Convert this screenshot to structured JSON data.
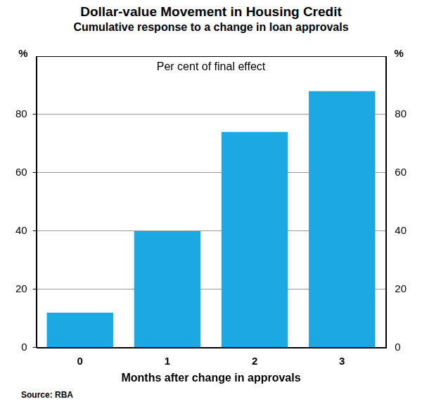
{
  "chart_data": {
    "type": "bar",
    "title": "Dollar-value Movement in Housing Credit",
    "subtitle": "Cumulative response to a change in loan approvals",
    "annotation": "Per cent of final effect",
    "ylabel": "%",
    "y2label": "%",
    "xlabel": "Months after change in approvals",
    "source": "Source: RBA",
    "categories": [
      "0",
      "1",
      "2",
      "3"
    ],
    "values": [
      12,
      40,
      74,
      88
    ],
    "color": "#1ba8e3",
    "ylim": [
      0,
      100
    ],
    "yticks": [
      0,
      20,
      40,
      60,
      80
    ],
    "y2lim": [
      0,
      100
    ],
    "y2ticks": [
      0,
      20,
      40,
      60,
      80
    ],
    "grid": true
  }
}
